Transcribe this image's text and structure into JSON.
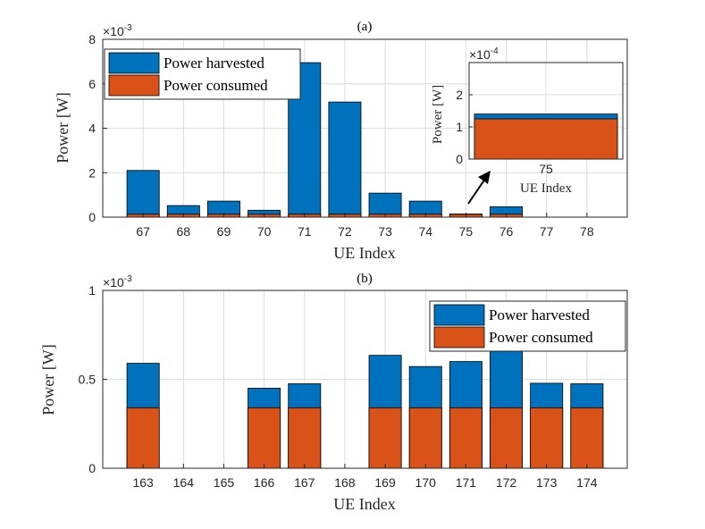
{
  "colors": {
    "harvested": "#0072BD",
    "consumed": "#D95319"
  },
  "chart_data": [
    {
      "type": "bar",
      "title": "(a)",
      "xlabel": "UE Index",
      "ylabel": "Power [W]",
      "exponent": "×10",
      "exponent_power": "-3",
      "ylim": [
        0,
        0.008
      ],
      "yticks": [
        0,
        2,
        4,
        6,
        8
      ],
      "categories": [
        "67",
        "68",
        "69",
        "70",
        "71",
        "72",
        "73",
        "74",
        "75",
        "76",
        "77",
        "78"
      ],
      "series": [
        {
          "name": "Power harvested",
          "values": [
            0.0021,
            0.00052,
            0.00072,
            0.00031,
            0.00695,
            0.00518,
            0.00108,
            0.00072,
            0.00014,
            0.00047,
            0,
            0
          ]
        },
        {
          "name": "Power consumed",
          "values": [
            0.00013,
            0.00013,
            0.00013,
            0.00013,
            0.00013,
            0.00013,
            0.00013,
            0.00013,
            0.000125,
            0.00013,
            0,
            0
          ]
        }
      ],
      "legend": [
        "Power harvested",
        "Power consumed"
      ],
      "legend_position": "top-left",
      "inset": {
        "category": "75",
        "xlabel": "UE Index",
        "ylabel": "Power [W]",
        "exponent": "×10",
        "exponent_power": "-4",
        "ylim": [
          0,
          0.0003
        ],
        "yticks": [
          0,
          1,
          2
        ],
        "harvested": 0.00014,
        "consumed": 0.000125
      }
    },
    {
      "type": "bar",
      "title": "(b)",
      "xlabel": "UE Index",
      "ylabel": "Power [W]",
      "exponent": "×10",
      "exponent_power": "-3",
      "ylim": [
        0,
        0.001
      ],
      "yticks": [
        "0",
        "0.5",
        "1"
      ],
      "categories": [
        "163",
        "164",
        "165",
        "166",
        "167",
        "168",
        "169",
        "170",
        "171",
        "172",
        "173",
        "174"
      ],
      "series": [
        {
          "name": "Power harvested",
          "values": [
            0.00059,
            0,
            0,
            0.00045,
            0.000475,
            0,
            0.000635,
            0.000572,
            0.0006,
            0.00068,
            0.000478,
            0.000475
          ]
        },
        {
          "name": "Power consumed",
          "values": [
            0.00034,
            0,
            0,
            0.00034,
            0.00034,
            0,
            0.00034,
            0.00034,
            0.00034,
            0.00034,
            0.00034,
            0.00034
          ]
        }
      ],
      "legend": [
        "Power harvested",
        "Power consumed"
      ],
      "legend_position": "top-right"
    }
  ]
}
